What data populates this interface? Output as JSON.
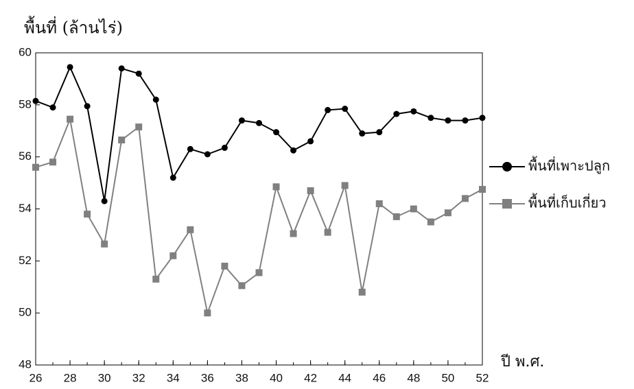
{
  "chart_data": {
    "type": "line",
    "ylabel": "พื้นที่ (ล้านไร่)",
    "xlabel": "ปี พ.ศ.",
    "x": [
      26,
      27,
      28,
      29,
      30,
      31,
      32,
      33,
      34,
      35,
      36,
      37,
      38,
      39,
      40,
      41,
      42,
      43,
      44,
      45,
      46,
      47,
      48,
      49,
      50,
      51,
      52
    ],
    "series": [
      {
        "name": "พื้นที่เพาะปลูก",
        "color": "#000000",
        "marker": "circle",
        "values": [
          58.15,
          57.9,
          59.45,
          57.95,
          54.3,
          59.4,
          59.2,
          58.2,
          55.2,
          56.3,
          56.1,
          56.35,
          57.4,
          57.3,
          56.95,
          56.25,
          56.6,
          57.8,
          57.85,
          56.9,
          56.95,
          57.65,
          57.75,
          57.5,
          57.4,
          57.4,
          57.5
        ]
      },
      {
        "name": "พื้นที่เก็บเกี่ยว",
        "color": "#808080",
        "marker": "square",
        "values": [
          55.6,
          55.8,
          57.45,
          53.8,
          52.65,
          56.65,
          57.15,
          51.3,
          52.2,
          53.2,
          50.0,
          51.8,
          51.05,
          51.55,
          54.85,
          53.05,
          54.7,
          53.1,
          54.9,
          50.8,
          54.2,
          53.7,
          54.0,
          53.5,
          53.85,
          54.4,
          54.75
        ]
      }
    ],
    "xlim": [
      26,
      52
    ],
    "xticks": [
      26,
      28,
      30,
      32,
      34,
      36,
      38,
      40,
      42,
      44,
      46,
      48,
      50,
      52
    ],
    "ylim": [
      48,
      60
    ],
    "yticks": [
      48,
      50,
      52,
      54,
      56,
      58,
      60
    ]
  }
}
